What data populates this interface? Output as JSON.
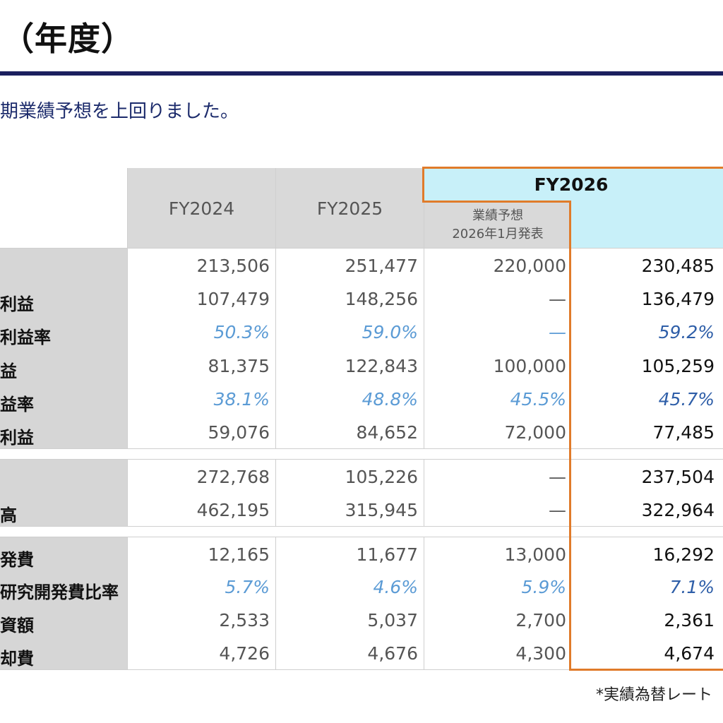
{
  "title": "（年度）",
  "subtitle": "期業績予想を上回りました。",
  "columns": {
    "fy2024": "FY2024",
    "fy2025": "FY2025",
    "fy2026": "FY2026",
    "forecast_line1": "業績予想",
    "forecast_line2": "2026年1月発表"
  },
  "rows": [
    {
      "label": "",
      "fy2024": "213,506",
      "fy2025": "251,477",
      "forecast": "220,000",
      "fy2026": "230,485",
      "pct": false
    },
    {
      "label": "利益",
      "fy2024": "107,479",
      "fy2025": "148,256",
      "forecast": "—",
      "fy2026": "136,479",
      "pct": false
    },
    {
      "label": "利益率",
      "fy2024": "50.3%",
      "fy2025": "59.0%",
      "forecast": "—",
      "fy2026": "59.2%",
      "pct": true
    },
    {
      "label": "益",
      "fy2024": "81,375",
      "fy2025": "122,843",
      "forecast": "100,000",
      "fy2026": "105,259",
      "pct": false
    },
    {
      "label": "益率",
      "fy2024": "38.1%",
      "fy2025": "48.8%",
      "forecast": "45.5%",
      "fy2026": "45.7%",
      "pct": true
    },
    {
      "label": "利益",
      "fy2024": "59,076",
      "fy2025": "84,652",
      "forecast": "72,000",
      "fy2026": "77,485",
      "pct": false
    },
    {
      "label": "",
      "fy2024": "272,768",
      "fy2025": "105,226",
      "forecast": "—",
      "fy2026": "237,504",
      "pct": false
    },
    {
      "label": "高",
      "fy2024": "462,195",
      "fy2025": "315,945",
      "forecast": "—",
      "fy2026": "322,964",
      "pct": false
    },
    {
      "label": "発費",
      "fy2024": "12,165",
      "fy2025": "11,677",
      "forecast": "13,000",
      "fy2026": "16,292",
      "pct": false
    },
    {
      "label": "研究開発費比率",
      "fy2024": "5.7%",
      "fy2025": "4.6%",
      "forecast": "5.9%",
      "fy2026": "7.1%",
      "pct": true
    },
    {
      "label": "資額",
      "fy2024": "2,533",
      "fy2025": "5,037",
      "forecast": "2,700",
      "fy2026": "2,361",
      "pct": false
    },
    {
      "label": "却費",
      "fy2024": "4,726",
      "fy2025": "4,676",
      "forecast": "4,300",
      "fy2026": "4,674",
      "pct": false
    }
  ],
  "footnote": "*実績為替レート",
  "colors": {
    "accent_navy": "#1b1f5e",
    "highlight_orange": "#e07b2a",
    "header_cyan": "#c8f0f9",
    "pct_blue": "#5b9bd5"
  }
}
